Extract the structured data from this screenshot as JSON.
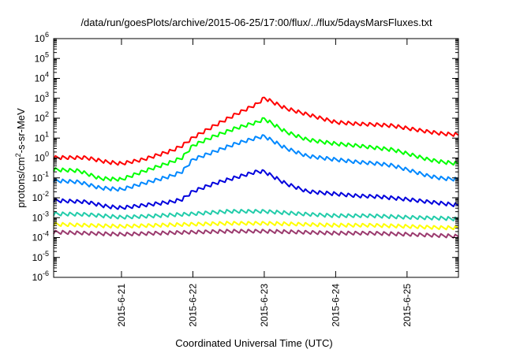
{
  "chart_data": {
    "type": "line",
    "title": "/data/run/goesPlots/archive/2015-06-25/17:00/flux/../flux/5daysMarsFluxes.txt",
    "xlabel": "Coordinated Universal Time (UTC)",
    "ylabel": "protons/cm²-s-sr-MeV",
    "yscale": "log",
    "ylim_exp": [
      -6,
      6
    ],
    "y_tick_exponents": [
      -6,
      -5,
      -4,
      -3,
      -2,
      -1,
      0,
      1,
      2,
      3,
      4,
      5,
      6
    ],
    "x_ticks": [
      "2015-6-21",
      "2015-6-22",
      "2015-6-23",
      "2015-6-24",
      "2015-6-25"
    ],
    "xlim_days": [
      -0.95,
      4.72
    ],
    "x_reference_date": "2015-6-21",
    "grid": false,
    "sawtooth_period_days": 0.1,
    "series": [
      {
        "color": "#ff0000",
        "points": [
          [
            -0.95,
            1.0
          ],
          [
            -0.5,
            1.0
          ],
          [
            -0.2,
            0.6
          ],
          [
            0.0,
            0.5
          ],
          [
            0.3,
            0.8
          ],
          [
            0.7,
            2.2
          ],
          [
            0.85,
            4.0
          ],
          [
            1.0,
            10
          ],
          [
            1.3,
            40
          ],
          [
            1.6,
            150
          ],
          [
            1.9,
            500
          ],
          [
            2.0,
            1000
          ],
          [
            2.3,
            300
          ],
          [
            2.6,
            150
          ],
          [
            3.0,
            60
          ],
          [
            3.3,
            50
          ],
          [
            3.6,
            45
          ],
          [
            3.8,
            40
          ],
          [
            4.0,
            30
          ],
          [
            4.3,
            20
          ],
          [
            4.5,
            16
          ],
          [
            4.72,
            14
          ]
        ]
      },
      {
        "color": "#00ff00",
        "points": [
          [
            -0.95,
            0.25
          ],
          [
            -0.6,
            0.22
          ],
          [
            -0.3,
            0.09
          ],
          [
            0.0,
            0.08
          ],
          [
            0.3,
            0.2
          ],
          [
            0.7,
            0.6
          ],
          [
            0.85,
            1.0
          ],
          [
            1.0,
            4.0
          ],
          [
            1.3,
            12
          ],
          [
            1.6,
            30
          ],
          [
            1.9,
            60
          ],
          [
            2.0,
            90
          ],
          [
            2.3,
            20
          ],
          [
            2.6,
            8
          ],
          [
            3.0,
            5
          ],
          [
            3.3,
            4
          ],
          [
            3.6,
            3.0
          ],
          [
            3.8,
            2.5
          ],
          [
            4.0,
            1.6
          ],
          [
            4.3,
            0.8
          ],
          [
            4.5,
            0.6
          ],
          [
            4.72,
            0.5
          ]
        ]
      },
      {
        "color": "#0088ff",
        "points": [
          [
            -0.95,
            0.07
          ],
          [
            -0.6,
            0.06
          ],
          [
            -0.3,
            0.03
          ],
          [
            0.0,
            0.025
          ],
          [
            0.3,
            0.05
          ],
          [
            0.7,
            0.12
          ],
          [
            0.85,
            0.2
          ],
          [
            1.0,
            0.8
          ],
          [
            1.3,
            2.0
          ],
          [
            1.6,
            5.0
          ],
          [
            1.9,
            10
          ],
          [
            2.0,
            12
          ],
          [
            2.3,
            3.0
          ],
          [
            2.6,
            1.2
          ],
          [
            3.0,
            0.8
          ],
          [
            3.3,
            0.6
          ],
          [
            3.6,
            0.5
          ],
          [
            3.8,
            0.4
          ],
          [
            4.0,
            0.25
          ],
          [
            4.3,
            0.12
          ],
          [
            4.5,
            0.09
          ],
          [
            4.72,
            0.08
          ]
        ]
      },
      {
        "color": "#0000dd",
        "points": [
          [
            -0.95,
            0.007
          ],
          [
            -0.5,
            0.006
          ],
          [
            -0.2,
            0.0035
          ],
          [
            0.0,
            0.003
          ],
          [
            0.3,
            0.004
          ],
          [
            0.7,
            0.006
          ],
          [
            0.85,
            0.008
          ],
          [
            1.0,
            0.02
          ],
          [
            1.3,
            0.05
          ],
          [
            1.6,
            0.1
          ],
          [
            1.9,
            0.2
          ],
          [
            2.0,
            0.2
          ],
          [
            2.3,
            0.05
          ],
          [
            2.6,
            0.02
          ],
          [
            3.0,
            0.015
          ],
          [
            3.3,
            0.012
          ],
          [
            3.6,
            0.011
          ],
          [
            4.0,
            0.008
          ],
          [
            4.3,
            0.006
          ],
          [
            4.5,
            0.005
          ],
          [
            4.72,
            0.004
          ]
        ]
      },
      {
        "color": "#22ccaa",
        "points": [
          [
            -0.95,
            0.0015
          ],
          [
            -0.5,
            0.0014
          ],
          [
            0.0,
            0.001
          ],
          [
            0.5,
            0.0012
          ],
          [
            1.0,
            0.0015
          ],
          [
            1.5,
            0.002
          ],
          [
            2.0,
            0.002
          ],
          [
            2.5,
            0.0015
          ],
          [
            3.0,
            0.0012
          ],
          [
            3.5,
            0.0012
          ],
          [
            4.0,
            0.001
          ],
          [
            4.5,
            0.0009
          ],
          [
            4.72,
            0.0008
          ]
        ]
      },
      {
        "color": "#ffff00",
        "points": [
          [
            -0.95,
            0.00045
          ],
          [
            -0.5,
            0.0004
          ],
          [
            0.0,
            0.00035
          ],
          [
            0.5,
            0.0004
          ],
          [
            1.0,
            0.00045
          ],
          [
            1.5,
            0.0005
          ],
          [
            2.0,
            0.0005
          ],
          [
            2.5,
            0.00045
          ],
          [
            3.0,
            0.0004
          ],
          [
            3.5,
            0.0004
          ],
          [
            4.0,
            0.00035
          ],
          [
            4.5,
            0.0003
          ],
          [
            4.72,
            0.0003
          ]
        ]
      },
      {
        "color": "#9b3a6e",
        "points": [
          [
            -0.95,
            0.00018
          ],
          [
            -0.5,
            0.00016
          ],
          [
            0.0,
            0.00014
          ],
          [
            0.5,
            0.00016
          ],
          [
            1.0,
            0.00018
          ],
          [
            1.5,
            0.0002
          ],
          [
            2.0,
            0.0002
          ],
          [
            2.5,
            0.00018
          ],
          [
            3.0,
            0.00016
          ],
          [
            3.5,
            0.00016
          ],
          [
            4.0,
            0.00014
          ],
          [
            4.5,
            0.00012
          ],
          [
            4.72,
            0.00011
          ]
        ]
      }
    ]
  }
}
